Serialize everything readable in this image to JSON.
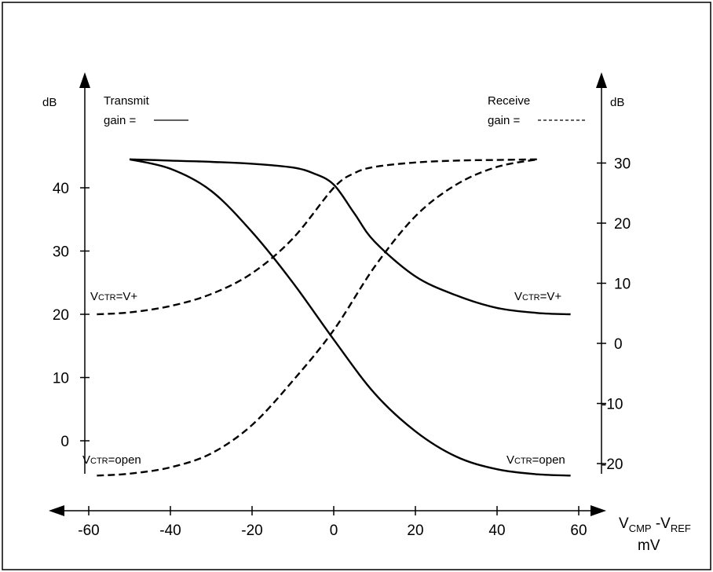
{
  "chart_data": {
    "type": "line",
    "title": "",
    "x_axis": {
      "label_main": "V",
      "label_sub1": "CMP",
      "label_mid": " -V",
      "label_sub2": "REF",
      "unit": "mV",
      "range": [
        -68,
        68
      ],
      "ticks": [
        -60,
        -40,
        -20,
        0,
        20,
        40,
        60
      ]
    },
    "y_left": {
      "label": "dB",
      "range": [
        -5,
        45
      ],
      "ticks": [
        0,
        10,
        20,
        30,
        40
      ]
    },
    "y_right": {
      "label": "dB",
      "range": [
        -22,
        31
      ],
      "ticks": [
        -20,
        -10,
        0,
        10,
        20,
        30
      ]
    },
    "legend": {
      "transmit_line1": "Transmit",
      "transmit_line2": "gain =",
      "receive_line1": "Receive",
      "receive_line2": "gain ="
    },
    "annotations": [
      {
        "id": "vctr-vplus-left",
        "prefix": "V",
        "sub": "CTR",
        "suffix": "=V+"
      },
      {
        "id": "vctr-vplus-right",
        "prefix": "V",
        "sub": "CTR",
        "suffix": "=V+"
      },
      {
        "id": "vctr-open-left",
        "prefix": "V",
        "sub": "CTR",
        "suffix": "=open"
      },
      {
        "id": "vctr-open-right",
        "prefix": "V",
        "sub": "CTR",
        "suffix": "=open"
      }
    ],
    "series": [
      {
        "style": "solid",
        "x": [
          -50,
          -40,
          -30,
          -20,
          -10,
          -5,
          0,
          5,
          10,
          20,
          30,
          40,
          50,
          58
        ],
        "y": [
          44.5,
          44.3,
          44.1,
          43.8,
          43.2,
          42.3,
          40.5,
          36.0,
          31.5,
          26.0,
          23.0,
          21.0,
          20.2,
          20.0
        ]
      },
      {
        "style": "solid",
        "x": [
          -50,
          -40,
          -30,
          -20,
          -10,
          0,
          10,
          20,
          30,
          40,
          50,
          58
        ],
        "y": [
          44.5,
          43.0,
          39.5,
          33.0,
          25.0,
          16.0,
          7.5,
          1.5,
          -2.5,
          -4.5,
          -5.3,
          -5.5
        ]
      },
      {
        "style": "dashed",
        "x": [
          -58,
          -50,
          -40,
          -30,
          -20,
          -10,
          0,
          5,
          10,
          20,
          30,
          40,
          50
        ],
        "y": [
          20.0,
          20.3,
          21.3,
          23.2,
          26.5,
          32.0,
          40.0,
          42.3,
          43.3,
          44.0,
          44.3,
          44.4,
          44.5
        ]
      },
      {
        "style": "dashed",
        "x": [
          -58,
          -50,
          -40,
          -30,
          -20,
          -10,
          0,
          10,
          20,
          30,
          40,
          50
        ],
        "y": [
          -5.5,
          -5.2,
          -4.2,
          -2.0,
          2.5,
          9.5,
          17.5,
          27.5,
          35.5,
          40.5,
          43.3,
          44.5
        ]
      }
    ]
  }
}
